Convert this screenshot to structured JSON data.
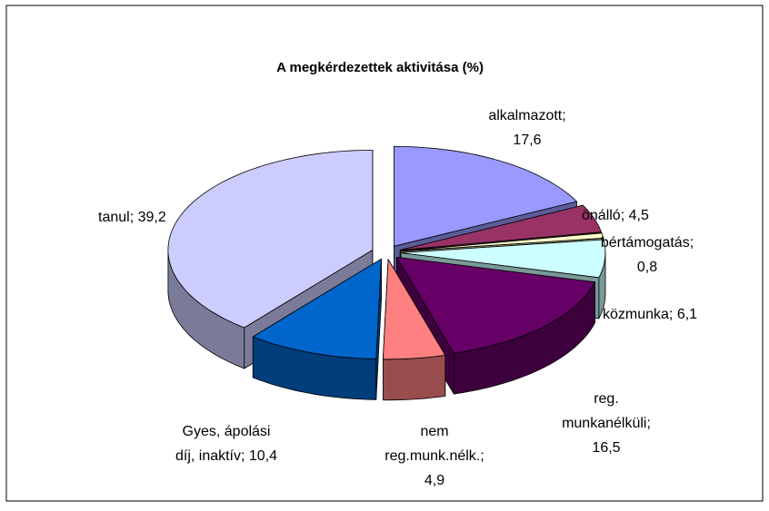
{
  "chart_data": {
    "type": "pie3d",
    "title": "A megkérdezettek aktivitása (%)",
    "values": [
      17.6,
      4.5,
      0.8,
      6.1,
      16.5,
      4.9,
      10.4,
      39.2
    ],
    "value_labels": [
      [
        "alkalmazott;",
        "17,6"
      ],
      [
        "önálló; 4,5"
      ],
      [
        "bértámogatás;",
        "0,8"
      ],
      [
        "közmunka; 6,1"
      ],
      [
        "reg.",
        "munkanélküli;",
        "16,5"
      ],
      [
        "nem",
        "reg.munk.nélk.;",
        "4,9"
      ],
      [
        "Gyes, ápolási",
        "díj, inaktív; 10,4"
      ],
      [
        "tanul; 39,2"
      ]
    ],
    "colors": [
      "#9999ff",
      "#993366",
      "#ffffcc",
      "#ccffff",
      "#660066",
      "#ff8080",
      "#0066cc",
      "#ccccff"
    ]
  }
}
